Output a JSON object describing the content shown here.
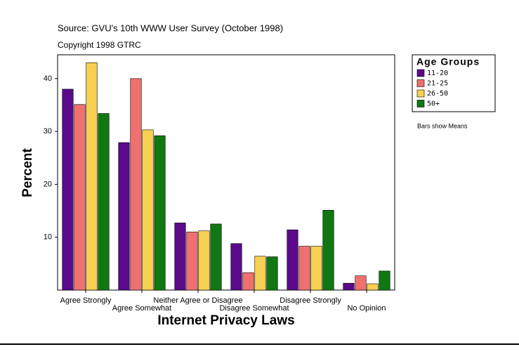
{
  "chart_data": {
    "type": "bar",
    "title": "Source: GVU's 10th WWW User Survey (October 1998)",
    "subtitle": "Copyright 1998 GTRC",
    "x_label": "Internet Privacy Laws",
    "y_label": "Percent",
    "legend_title": "Age Groups",
    "annotation": "Bars show Means",
    "categories": [
      "Agree Strongly",
      "Agree Somewhat",
      "Neither Agree or Disagree",
      "Disagree Somewhat",
      "Disagree Strongly",
      "No Opinion"
    ],
    "series": [
      {
        "name": "11-20",
        "color": "#5a0a8a",
        "values": [
          38.0,
          27.9,
          12.7,
          8.8,
          11.4,
          1.3
        ]
      },
      {
        "name": "21-25",
        "color": "#f07070",
        "values": [
          35.1,
          40.0,
          11.0,
          3.3,
          8.3,
          2.7
        ]
      },
      {
        "name": "26-50",
        "color": "#f8d050",
        "values": [
          43.0,
          30.3,
          11.2,
          6.4,
          8.3,
          1.2
        ]
      },
      {
        "name": "50+",
        "color": "#107810",
        "values": [
          33.4,
          29.2,
          12.5,
          6.3,
          15.1,
          3.6
        ]
      }
    ],
    "ylim": [
      0,
      44.5
    ],
    "yticks": [
      10,
      20,
      30,
      40
    ],
    "grid": false,
    "legend": "right"
  }
}
